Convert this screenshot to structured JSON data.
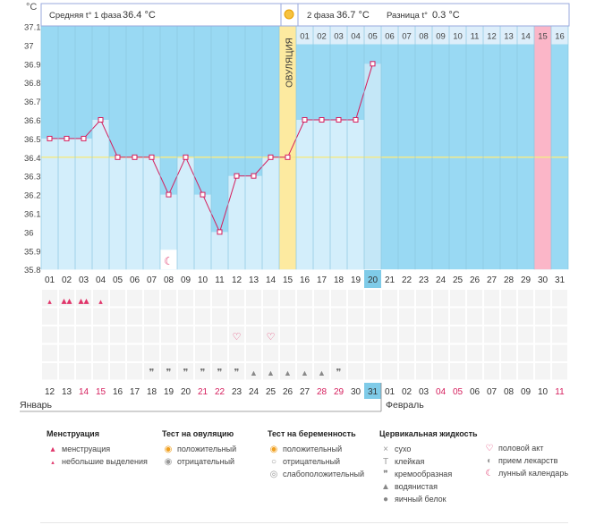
{
  "header": {
    "left_label": "Средняя t° 1 фаза",
    "left_value": "36.4 °C",
    "phase2_label": "2 фаза",
    "phase2_value": "36.7 °C",
    "diff_label": "Разница t°",
    "diff_value": "0.3 °C",
    "ovulation_label": "ОВУЛЯЦИЯ"
  },
  "chart_data": {
    "type": "line",
    "title": "",
    "ylabel": "°C",
    "ylim": [
      35.8,
      37.1
    ],
    "yticks": [
      "37.1",
      "37",
      "36.9",
      "36.8",
      "36.7",
      "36.6",
      "36.5",
      "36.4",
      "36.3",
      "36.2",
      "36.1",
      "36",
      "35.9",
      "35.8"
    ],
    "cycle_days": [
      "01",
      "02",
      "03",
      "04",
      "05",
      "06",
      "07",
      "08",
      "09",
      "10",
      "11",
      "12",
      "13",
      "14",
      "15",
      "16",
      "17",
      "18",
      "19",
      "20",
      "21",
      "22",
      "23",
      "24",
      "25",
      "26",
      "27",
      "28",
      "29",
      "30",
      "31"
    ],
    "phase2_days": [
      "01",
      "02",
      "03",
      "04",
      "05",
      "06",
      "07",
      "08",
      "09",
      "10",
      "11",
      "12",
      "13",
      "14",
      "15",
      "16"
    ],
    "ovulation_day_index": 15,
    "today_index": 20,
    "highlight_phase2_index": 15,
    "series": [
      {
        "values": [
          36.5,
          36.5,
          36.5,
          36.6,
          36.4,
          36.4,
          36.4,
          36.2,
          36.4,
          36.2,
          36.0,
          36.3,
          36.3,
          36.4,
          36.4,
          36.6,
          36.6,
          36.6,
          36.6,
          36.9
        ]
      }
    ],
    "reference_line": 36.4,
    "moon_day_index": 8
  },
  "calendar": {
    "dates": [
      "12",
      "13",
      "14",
      "15",
      "16",
      "17",
      "18",
      "19",
      "20",
      "21",
      "22",
      "23",
      "24",
      "25",
      "26",
      "27",
      "28",
      "29",
      "30",
      "31",
      "01",
      "02",
      "03",
      "04",
      "05",
      "06",
      "07",
      "08",
      "09",
      "10",
      "11"
    ],
    "red_dates": [
      3,
      4,
      10,
      11,
      17,
      18,
      24,
      25,
      31
    ],
    "highlight_index": 20,
    "month_left": "Январь",
    "month_right": "Февраль"
  },
  "symbols": {
    "menstruation": [
      1,
      2,
      3,
      4
    ],
    "menstruation_heavy": [
      2,
      3
    ],
    "sex": [
      12,
      14
    ],
    "creamy": [
      7,
      8,
      9,
      10,
      11,
      12,
      18
    ],
    "watery": [
      13,
      14,
      15,
      16,
      17
    ]
  },
  "legend": {
    "menstruation": {
      "title": "Менструация",
      "items": [
        "менструация",
        "небольшие выделения"
      ]
    },
    "ovulation_test": {
      "title": "Тест на овуляцию",
      "items": [
        "положительный",
        "отрицательный"
      ]
    },
    "pregnancy_test": {
      "title": "Тест на беременность",
      "items": [
        "положительный",
        "отрицательный",
        "слабоположительный"
      ]
    },
    "cervical": {
      "title": "Цервикальная жидкость",
      "items": [
        "сухо",
        "клейкая",
        "кремообразная",
        "водянистая",
        "яичный белок"
      ]
    },
    "other": {
      "items": [
        "половой акт",
        "прием лекарств",
        "лунный календарь"
      ]
    }
  }
}
